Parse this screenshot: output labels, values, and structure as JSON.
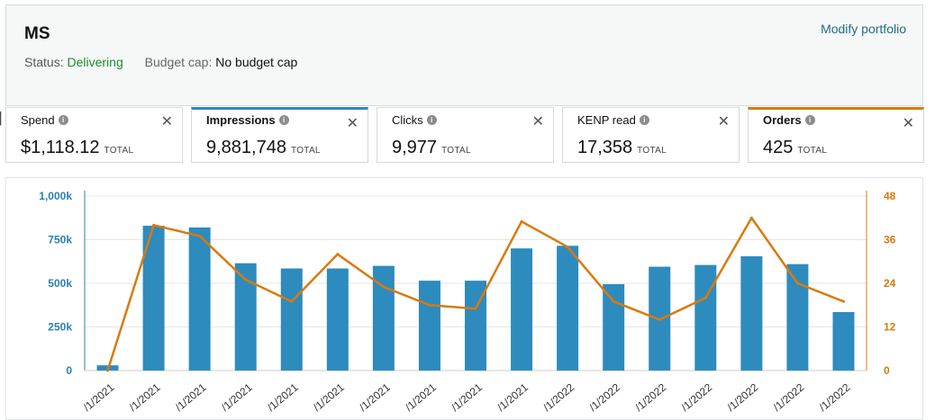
{
  "portfolio": {
    "name": "MS",
    "modify_link": "Modify portfolio",
    "status_label": "Status:",
    "status_value": "Delivering",
    "budget_label": "Budget cap:",
    "budget_value": "No budget cap"
  },
  "metrics": [
    {
      "name": "Spend",
      "value": "$1,118.12",
      "total_label": "TOTAL",
      "info_icon": "info-icon",
      "close_icon": "close-icon"
    },
    {
      "name": "Impressions",
      "value": "9,881,748",
      "total_label": "TOTAL",
      "selected": true,
      "accent": "#2a8bba"
    },
    {
      "name": "Clicks",
      "value": "9,977",
      "total_label": "TOTAL"
    },
    {
      "name": "KENP read",
      "value": "17,358",
      "total_label": "TOTAL"
    },
    {
      "name": "Orders",
      "value": "425",
      "total_label": "TOTAL",
      "selected": true,
      "accent": "#d97a0f"
    }
  ],
  "colors": {
    "bar": "#2e8bbd",
    "line": "#d97a0f",
    "left_axis": "#2a7fb0",
    "right_axis": "#d97a0f",
    "status_green": "#1f8a2e",
    "link": "#226d85"
  },
  "chart_data": {
    "type": "bar",
    "categories": [
      "/1/2021",
      "/1/2021",
      "/1/2021",
      "/1/2021",
      "/1/2021",
      "/1/2021",
      "/1/2021",
      "/1/2021",
      "/1/2021",
      "/1/2021",
      "/1/2022",
      "/1/2022",
      "/1/2022",
      "/1/2022",
      "/1/2022",
      "/1/2022",
      "/1/2022"
    ],
    "left_axis": {
      "ticks": [
        "0",
        "250k",
        "500k",
        "750k",
        "1,000k"
      ],
      "min": 0,
      "max": 1000000
    },
    "right_axis": {
      "ticks": [
        "0",
        "12",
        "24",
        "36",
        "48"
      ],
      "min": 0,
      "max": 48
    },
    "series": [
      {
        "name": "Impressions",
        "type": "bar",
        "axis": "left",
        "values": [
          30000,
          830000,
          820000,
          615000,
          585000,
          585000,
          600000,
          515000,
          515000,
          700000,
          715000,
          495000,
          595000,
          605000,
          655000,
          610000,
          335000
        ]
      },
      {
        "name": "Orders",
        "type": "line",
        "axis": "right",
        "values": [
          0,
          40,
          37,
          25,
          19,
          32,
          23,
          18,
          17,
          41,
          34,
          19,
          14,
          20,
          42,
          24,
          19
        ]
      }
    ],
    "grid": true
  }
}
